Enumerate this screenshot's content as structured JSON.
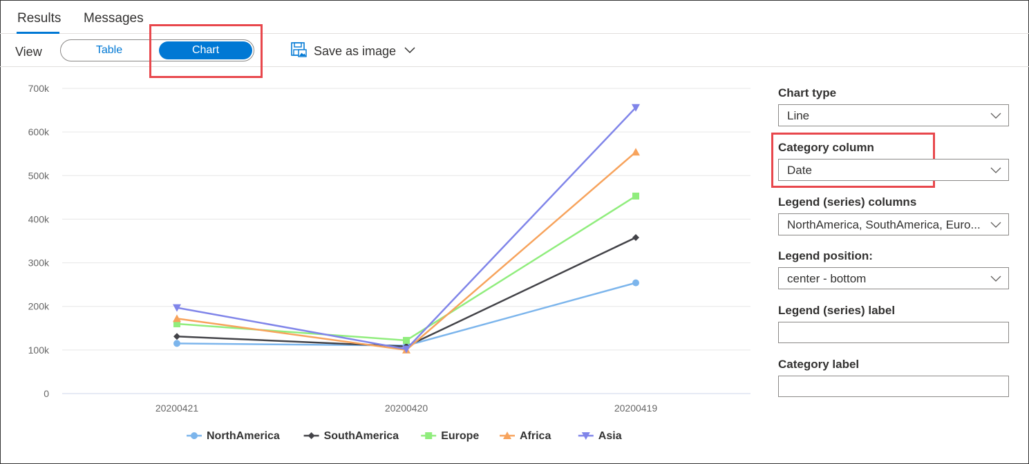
{
  "tabs": [
    {
      "label": "Results",
      "active": true
    },
    {
      "label": "Messages",
      "active": false
    }
  ],
  "view": {
    "label": "View",
    "options": [
      "Table",
      "Chart"
    ],
    "selected": "Chart",
    "save_label": "Save as image"
  },
  "panel": {
    "chart_type_label": "Chart type",
    "chart_type_value": "Line",
    "category_column_label": "Category column",
    "category_column_value": "Date",
    "legend_columns_label": "Legend (series) columns",
    "legend_columns_value": "NorthAmerica, SouthAmerica, Euro...",
    "legend_position_label": "Legend position:",
    "legend_position_value": "center - bottom",
    "legend_label_label": "Legend (series) label",
    "legend_label_value": "",
    "category_label_label": "Category label",
    "category_label_value": ""
  },
  "colors": {
    "accent": "#0078d4",
    "highlight": "#e8474c",
    "gridline": "#e6e6e6"
  },
  "chart_data": {
    "type": "line",
    "categories": [
      "20200421",
      "20200420",
      "20200419"
    ],
    "y_ticks": [
      "0",
      "100k",
      "200k",
      "300k",
      "400k",
      "500k",
      "600k",
      "700k"
    ],
    "ylim": [
      0,
      700000
    ],
    "grid": true,
    "legend_position": "bottom-center",
    "series": [
      {
        "name": "NorthAmerica",
        "color": "#7cb5ec",
        "marker": "circle",
        "values": [
          115000,
          110000,
          254000
        ]
      },
      {
        "name": "SouthAmerica",
        "color": "#434348",
        "marker": "diamond",
        "values": [
          131000,
          108000,
          358000
        ]
      },
      {
        "name": "Europe",
        "color": "#90ed7d",
        "marker": "square",
        "values": [
          160000,
          122000,
          453000
        ]
      },
      {
        "name": "Africa",
        "color": "#f7a35c",
        "marker": "triangle",
        "values": [
          172000,
          100000,
          554000
        ]
      },
      {
        "name": "Asia",
        "color": "#8085e9",
        "marker": "triangle-down",
        "values": [
          197000,
          102000,
          656000
        ]
      }
    ]
  }
}
